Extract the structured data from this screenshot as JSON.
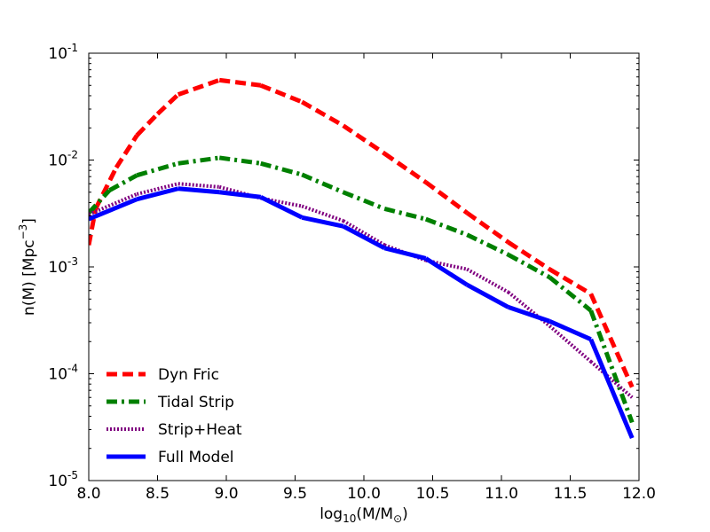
{
  "chart_data": {
    "type": "line",
    "xlabel": {
      "base": "log",
      "sub": "10",
      "main": "(M/M",
      "sub2": "⊙",
      "close": ")"
    },
    "ylabel": {
      "main": "n(M) [Mpc",
      "sup": "−3",
      "close": "]"
    },
    "xlim": [
      8.0,
      12.0
    ],
    "ylim_log10": [
      -5,
      -1
    ],
    "xticks": [
      "8.0",
      "8.5",
      "9.0",
      "9.5",
      "10.0",
      "10.5",
      "11.0",
      "11.5",
      "12.0"
    ],
    "yticks": [
      {
        "exp": -5,
        "base": "10",
        "sup": "-5"
      },
      {
        "exp": -4,
        "base": "10",
        "sup": "-4"
      },
      {
        "exp": -3,
        "base": "10",
        "sup": "-3"
      },
      {
        "exp": -2,
        "base": "10",
        "sup": "-2"
      },
      {
        "exp": -1,
        "base": "10",
        "sup": "-1"
      }
    ],
    "legend_position": "lower-left",
    "series": [
      {
        "name": "Dyn Fric",
        "color": "#ff0000",
        "style": "dashed",
        "x": [
          8.0,
          8.05,
          8.2,
          8.35,
          8.5,
          8.65,
          8.95,
          9.25,
          9.55,
          9.85,
          10.15,
          10.45,
          10.75,
          11.05,
          11.35,
          11.65,
          11.95
        ],
        "y": [
          0.0016,
          0.0035,
          0.0085,
          0.017,
          0.027,
          0.041,
          0.056,
          0.05,
          0.035,
          0.021,
          0.0115,
          0.0062,
          0.0032,
          0.0017,
          0.00095,
          0.00056,
          7.5e-05
        ]
      },
      {
        "name": "Tidal Strip",
        "color": "#008000",
        "style": "dashdot",
        "x": [
          8.0,
          8.15,
          8.35,
          8.65,
          8.95,
          9.25,
          9.55,
          9.85,
          10.15,
          10.45,
          10.75,
          11.05,
          11.35,
          11.65,
          11.95
        ],
        "y": [
          0.0032,
          0.0052,
          0.0072,
          0.0093,
          0.0105,
          0.0093,
          0.0073,
          0.005,
          0.0035,
          0.0028,
          0.002,
          0.0013,
          0.0008,
          0.00039,
          3.5e-05
        ]
      },
      {
        "name": "Strip+Heat",
        "color": "#800080",
        "style": "dotted",
        "x": [
          8.0,
          8.35,
          8.65,
          8.95,
          9.25,
          9.55,
          9.85,
          10.15,
          10.45,
          10.75,
          11.05,
          11.35,
          11.65,
          11.95
        ],
        "y": [
          0.0031,
          0.0048,
          0.006,
          0.0056,
          0.0044,
          0.0037,
          0.0027,
          0.0016,
          0.00115,
          0.00095,
          0.00058,
          0.00028,
          0.00013,
          6e-05
        ]
      },
      {
        "name": "Full Model",
        "color": "#0000ff",
        "style": "solid",
        "x": [
          8.0,
          8.35,
          8.65,
          8.95,
          9.25,
          9.55,
          9.85,
          10.15,
          10.45,
          10.75,
          11.05,
          11.35,
          11.65,
          11.95
        ],
        "y": [
          0.0028,
          0.0043,
          0.0054,
          0.005,
          0.0045,
          0.0029,
          0.0024,
          0.0015,
          0.0012,
          0.00068,
          0.00042,
          0.00031,
          0.00021,
          2.5e-05
        ]
      }
    ]
  }
}
